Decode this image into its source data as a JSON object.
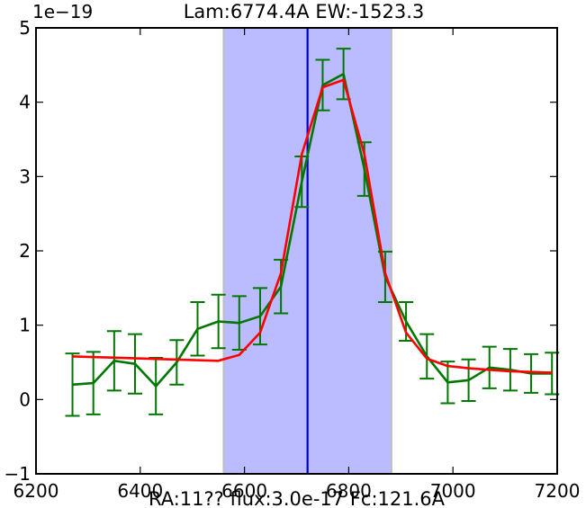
{
  "chart_data": {
    "type": "line",
    "title": "Lam:6774.4A EW:-1523.3",
    "y_multiplier": "1e−19",
    "xlabel": "RA:11?? flux:3.0e-17 Fc:121.6A",
    "ylabel": "",
    "xlim": [
      6200,
      7200
    ],
    "ylim": [
      -1,
      5
    ],
    "xticks": [
      6200,
      6400,
      6600,
      6800,
      7000,
      7200
    ],
    "yticks": [
      -1,
      0,
      1,
      2,
      3,
      4,
      5
    ],
    "xtick_labels": [
      "6200",
      "6400",
      "6600",
      "6800",
      "7000",
      "7200"
    ],
    "ytick_labels": [
      "−1",
      "0",
      "1",
      "2",
      "3",
      "4",
      "5"
    ],
    "shaded_region": {
      "x0": 6560,
      "x1": 6882,
      "color": "#bbbbff",
      "edge_color": "#bfbfbf"
    },
    "vertical_line": {
      "x": 6721,
      "color": "#0000cc"
    },
    "grid": false,
    "series": [
      {
        "color": "#007700",
        "style": "errorbar-line",
        "x": [
          6270,
          6310,
          6350,
          6390,
          6430,
          6470,
          6510,
          6550,
          6590,
          6630,
          6670,
          6710,
          6750,
          6790,
          6830,
          6870,
          6910,
          6950,
          6990,
          7030,
          7070,
          7110,
          7150,
          7190
        ],
        "y": [
          0.2,
          0.22,
          0.52,
          0.48,
          0.18,
          0.5,
          0.95,
          1.05,
          1.03,
          1.12,
          1.52,
          2.93,
          4.23,
          4.38,
          3.1,
          1.65,
          1.05,
          0.58,
          0.23,
          0.26,
          0.43,
          0.4,
          0.35,
          0.35
        ],
        "err": [
          0.42,
          0.42,
          0.4,
          0.4,
          0.38,
          0.3,
          0.36,
          0.36,
          0.36,
          0.38,
          0.36,
          0.34,
          0.34,
          0.34,
          0.36,
          0.34,
          0.26,
          0.3,
          0.28,
          0.28,
          0.28,
          0.28,
          0.26,
          0.28
        ]
      },
      {
        "color": "#ff0000",
        "style": "line",
        "x": [
          6270,
          6550,
          6590,
          6630,
          6670,
          6710,
          6750,
          6790,
          6830,
          6870,
          6910,
          6950,
          6990,
          7030,
          7070,
          7110,
          7150,
          7190
        ],
        "y": [
          0.58,
          0.52,
          0.6,
          0.9,
          1.7,
          3.3,
          4.2,
          4.3,
          3.3,
          1.7,
          0.9,
          0.55,
          0.45,
          0.42,
          0.4,
          0.38,
          0.37,
          0.36
        ]
      }
    ]
  }
}
